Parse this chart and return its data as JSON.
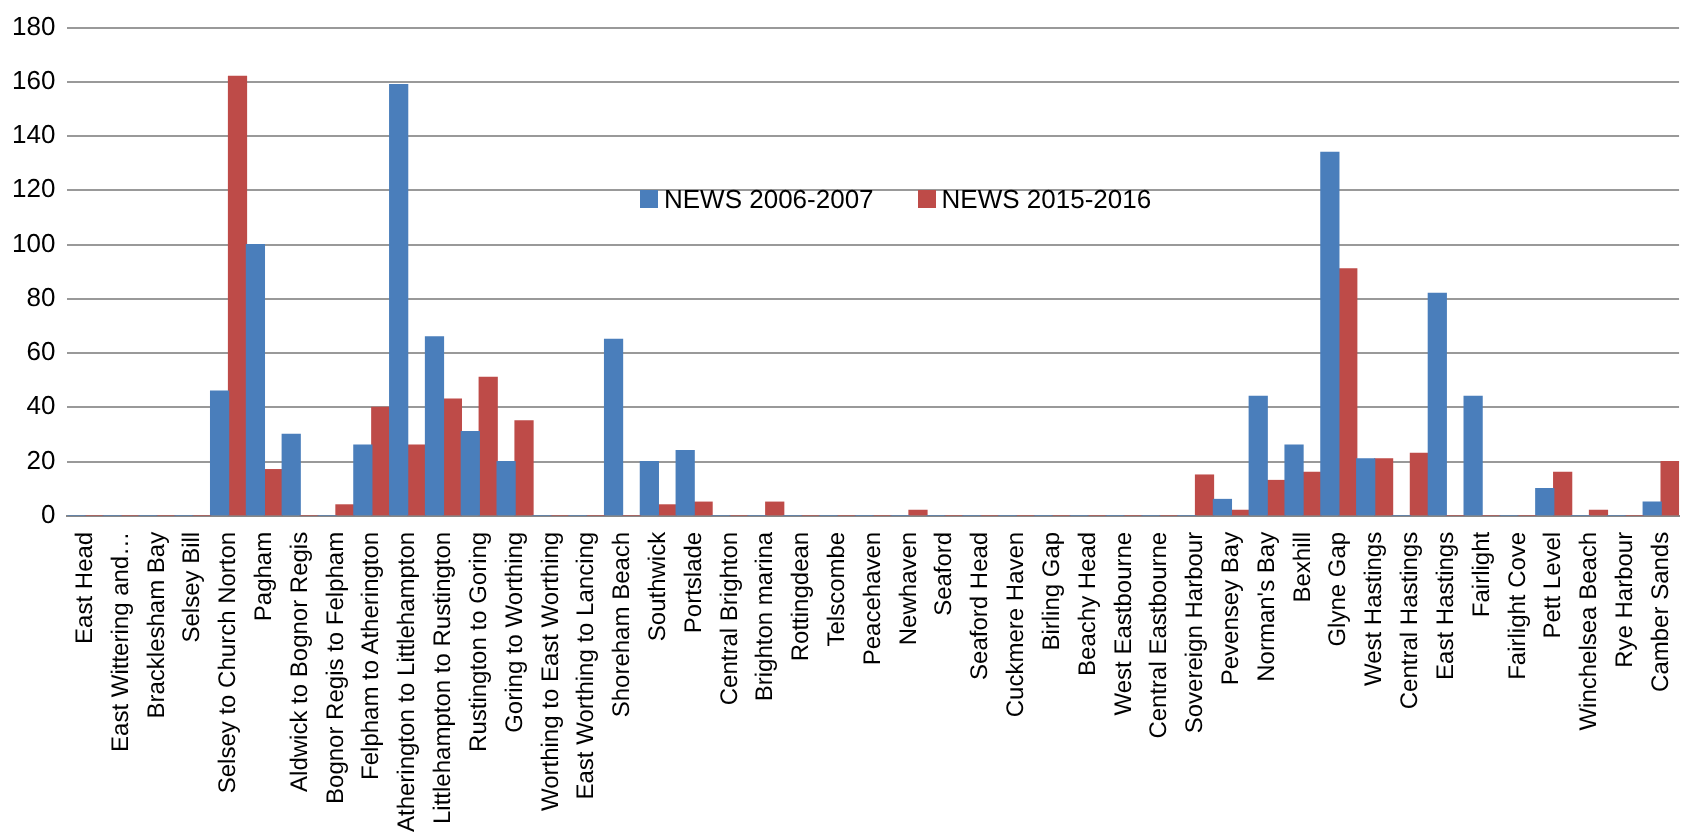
{
  "chart_data": {
    "type": "bar",
    "categories": [
      "East Head",
      "East Wittering and…",
      "Bracklesham Bay",
      "Selsey Bill",
      "Selsey to Church Norton",
      "Pagham",
      "Aldwick to Bognor Regis",
      "Bognor Regis to Felpham",
      "Felpham to Atherington",
      "Atherington to Littlehampton",
      "Littlehampton to Rustington",
      "Rustington to Goring",
      "Goring to Worthing",
      "Worthing to East Worthing",
      "East Worthing to Lancing",
      "Shoreham Beach",
      "Southwick",
      "Portslade",
      "Central Brighton",
      "Brighton marina",
      "Rottingdean",
      "Telscombe",
      "Peacehaven",
      "Newhaven",
      "Seaford",
      "Seaford Head",
      "Cuckmere Haven",
      "Birling Gap",
      "Beachy Head",
      "West Eastbourne",
      "Central Eastbourne",
      "Sovereign Harbour",
      "Pevensey Bay",
      "Norman's Bay",
      "Bexhill",
      "Glyne Gap",
      "West Hastings",
      "Central Hastings",
      "East Hastings",
      "Fairlight",
      "Fairlight Cove",
      "Pett Level",
      "Winchelsea Beach",
      "Rye Harbour",
      "Camber Sands"
    ],
    "series": [
      {
        "name": "NEWS 2006-2007",
        "color": "#4a7ebb",
        "values": [
          0,
          0,
          0,
          0,
          46,
          100,
          30,
          0,
          26,
          159,
          66,
          31,
          20,
          0,
          0,
          65,
          20,
          24,
          0,
          0,
          0,
          0,
          0,
          0,
          0,
          0,
          0,
          0,
          0,
          0,
          0,
          0,
          6,
          44,
          26,
          134,
          21,
          0,
          82,
          44,
          0,
          10,
          0,
          0,
          5
        ]
      },
      {
        "name": "NEWS 2015-2016",
        "color": "#be4b48",
        "values": [
          0,
          0,
          0,
          0,
          162,
          17,
          0,
          4,
          40,
          26,
          43,
          51,
          35,
          0,
          0,
          0,
          4,
          5,
          0,
          5,
          0,
          0,
          0,
          2,
          0,
          0,
          0,
          0,
          0,
          0,
          0,
          15,
          2,
          13,
          16,
          91,
          21,
          23,
          0,
          0,
          0,
          16,
          2,
          0,
          20
        ]
      }
    ],
    "ylim": [
      0,
      180
    ],
    "yticks": [
      0,
      20,
      40,
      60,
      80,
      100,
      120,
      140,
      160,
      180
    ],
    "grid": "y",
    "legend": "top"
  }
}
